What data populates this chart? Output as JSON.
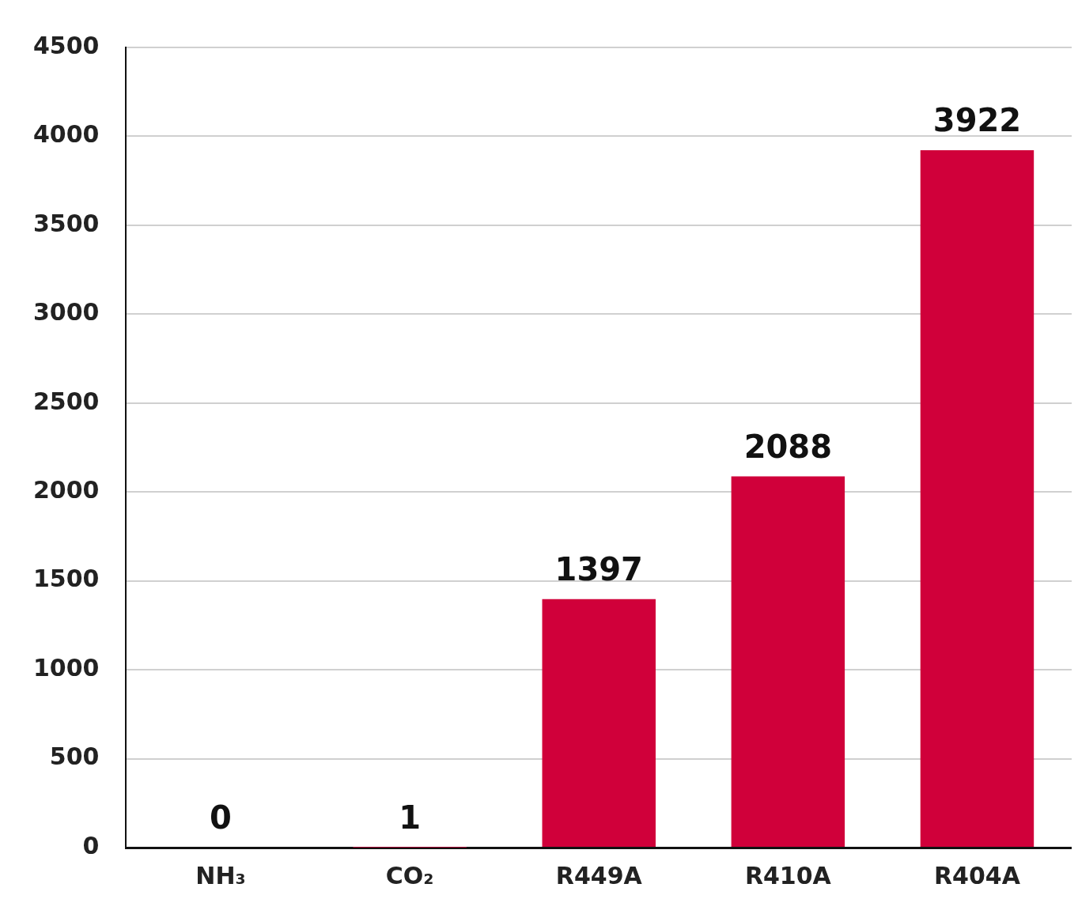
{
  "chart_data": {
    "type": "bar",
    "categories": [
      "NH₃",
      "CO₂",
      "R449A",
      "R410A",
      "R404A"
    ],
    "values": [
      0,
      1,
      1397,
      2088,
      3922
    ],
    "color": "#d0003a",
    "ylim": [
      0,
      4500
    ],
    "yticks": [
      0,
      500,
      1000,
      1500,
      2000,
      2500,
      3000,
      3500,
      4000,
      4500
    ],
    "grid": "y",
    "data_labels": true,
    "legend": false
  }
}
